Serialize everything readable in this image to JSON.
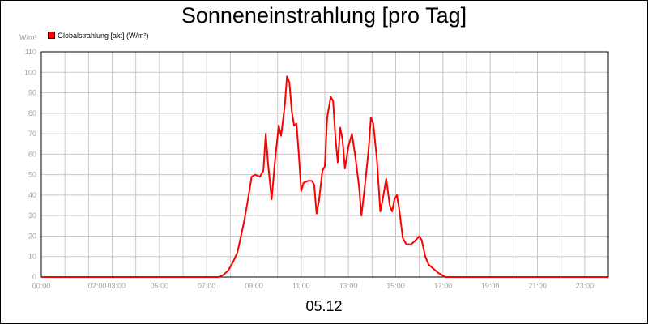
{
  "title": "Sonneneinstrahlung [pro Tag]",
  "unit_label": "W/m²",
  "legend": {
    "label": "Globalstrahlung [akt] (W/m²)",
    "color": "#ff0000"
  },
  "x_caption": "05.12",
  "chart_data": {
    "type": "line",
    "title": "Sonneneinstrahlung [pro Tag]",
    "ylabel": "W/m²",
    "xlabel": "05.12",
    "ylim": [
      0,
      110
    ],
    "xlim": [
      0,
      24
    ],
    "yticks": [
      0,
      10,
      20,
      30,
      40,
      50,
      60,
      70,
      80,
      90,
      100,
      110
    ],
    "xticks": [
      {
        "pos": 0,
        "label": "00:00"
      },
      {
        "pos": 2,
        "label": "02:00"
      },
      {
        "pos": 3,
        "label": "03:00"
      },
      {
        "pos": 5,
        "label": "05:00"
      },
      {
        "pos": 7,
        "label": "07:00"
      },
      {
        "pos": 9,
        "label": "09:00"
      },
      {
        "pos": 11,
        "label": "11:00"
      },
      {
        "pos": 13,
        "label": "13:00"
      },
      {
        "pos": 15,
        "label": "15:00"
      },
      {
        "pos": 17,
        "label": "17:00"
      },
      {
        "pos": 19,
        "label": "19:00"
      },
      {
        "pos": 21,
        "label": "21:00"
      },
      {
        "pos": 23,
        "label": "23:00"
      }
    ],
    "grid": true,
    "legend_position": "top-left",
    "series": [
      {
        "name": "Globalstrahlung [akt] (W/m²)",
        "color": "#ff0000",
        "points": [
          [
            0,
            0
          ],
          [
            7.5,
            0
          ],
          [
            7.7,
            1
          ],
          [
            7.9,
            3
          ],
          [
            8.1,
            7
          ],
          [
            8.3,
            12
          ],
          [
            8.45,
            20
          ],
          [
            8.6,
            28
          ],
          [
            8.75,
            38
          ],
          [
            8.9,
            49
          ],
          [
            9.05,
            50
          ],
          [
            9.25,
            49
          ],
          [
            9.4,
            52
          ],
          [
            9.5,
            70
          ],
          [
            9.6,
            55
          ],
          [
            9.75,
            38
          ],
          [
            9.9,
            58
          ],
          [
            10.05,
            74
          ],
          [
            10.15,
            69
          ],
          [
            10.3,
            83
          ],
          [
            10.4,
            98
          ],
          [
            10.5,
            95
          ],
          [
            10.6,
            81
          ],
          [
            10.7,
            74
          ],
          [
            10.8,
            75
          ],
          [
            10.9,
            60
          ],
          [
            11.0,
            42
          ],
          [
            11.1,
            46
          ],
          [
            11.3,
            47
          ],
          [
            11.45,
            47
          ],
          [
            11.55,
            45
          ],
          [
            11.65,
            31
          ],
          [
            11.75,
            37
          ],
          [
            11.9,
            52
          ],
          [
            12.0,
            54
          ],
          [
            12.1,
            78
          ],
          [
            12.25,
            88
          ],
          [
            12.35,
            86
          ],
          [
            12.45,
            68
          ],
          [
            12.55,
            56
          ],
          [
            12.65,
            73
          ],
          [
            12.75,
            67
          ],
          [
            12.85,
            53
          ],
          [
            13.0,
            64
          ],
          [
            13.15,
            70
          ],
          [
            13.3,
            58
          ],
          [
            13.45,
            44
          ],
          [
            13.55,
            30
          ],
          [
            13.7,
            45
          ],
          [
            13.85,
            62
          ],
          [
            13.95,
            78
          ],
          [
            14.05,
            75
          ],
          [
            14.2,
            58
          ],
          [
            14.35,
            32
          ],
          [
            14.45,
            38
          ],
          [
            14.6,
            48
          ],
          [
            14.75,
            35
          ],
          [
            14.85,
            32
          ],
          [
            14.95,
            38
          ],
          [
            15.05,
            40
          ],
          [
            15.15,
            33
          ],
          [
            15.3,
            19
          ],
          [
            15.45,
            16
          ],
          [
            15.65,
            16
          ],
          [
            15.85,
            18
          ],
          [
            16.0,
            20
          ],
          [
            16.1,
            18
          ],
          [
            16.25,
            10
          ],
          [
            16.4,
            6
          ],
          [
            16.6,
            4
          ],
          [
            16.8,
            2
          ],
          [
            16.95,
            1
          ],
          [
            17.1,
            0
          ],
          [
            24,
            0
          ]
        ]
      }
    ]
  }
}
